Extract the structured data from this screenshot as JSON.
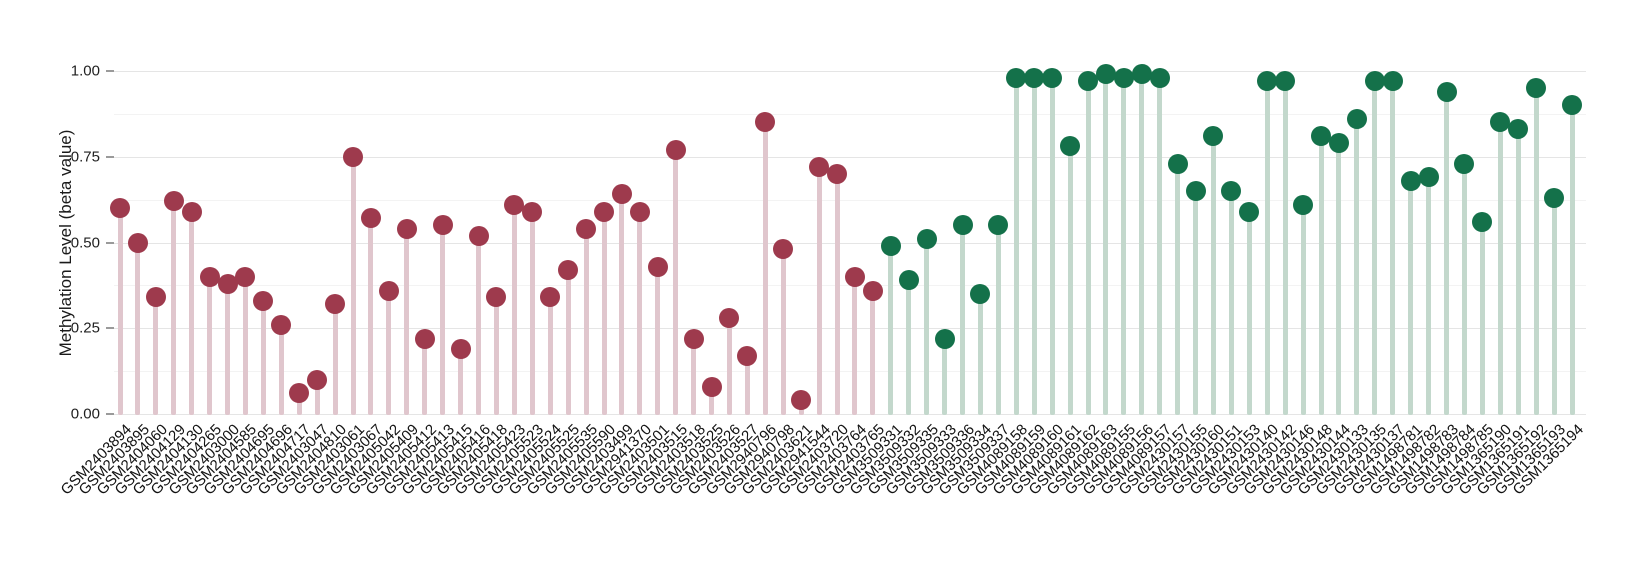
{
  "chart_data": {
    "type": "lollipop",
    "title": "",
    "ylabel": "Methylation Level (beta value)",
    "ylim": [
      0,
      1.0
    ],
    "yticks": [
      0,
      0.25,
      0.5,
      0.75,
      1.0
    ],
    "ytick_labels": [
      "0.00",
      "0.25",
      "0.50",
      "0.75",
      "1.00"
    ],
    "grid": "horizontal-only, major every 0.25, minor every 0.125",
    "legend": "none",
    "groups": [
      {
        "name": "group-1-red",
        "dot_color": "#9e3a4d",
        "stem_color": "#e0c6cd"
      },
      {
        "name": "group-2-green",
        "dot_color": "#14714a",
        "stem_color": "#c3d8cc"
      }
    ],
    "points": [
      {
        "sample": "GSM2403894",
        "value": 0.6,
        "group": 0
      },
      {
        "sample": "GSM2403895",
        "value": 0.5,
        "group": 0
      },
      {
        "sample": "GSM2404060",
        "value": 0.34,
        "group": 0
      },
      {
        "sample": "GSM2404129",
        "value": 0.62,
        "group": 0
      },
      {
        "sample": "GSM2404130",
        "value": 0.59,
        "group": 0
      },
      {
        "sample": "GSM2404265",
        "value": 0.4,
        "group": 0
      },
      {
        "sample": "GSM2403000",
        "value": 0.38,
        "group": 0
      },
      {
        "sample": "GSM2404585",
        "value": 0.4,
        "group": 0
      },
      {
        "sample": "GSM2404695",
        "value": 0.33,
        "group": 0
      },
      {
        "sample": "GSM2404696",
        "value": 0.26,
        "group": 0
      },
      {
        "sample": "GSM2404717",
        "value": 0.06,
        "group": 0
      },
      {
        "sample": "GSM2403047",
        "value": 0.1,
        "group": 0
      },
      {
        "sample": "GSM2404810",
        "value": 0.32,
        "group": 0
      },
      {
        "sample": "GSM2403061",
        "value": 0.75,
        "group": 0
      },
      {
        "sample": "GSM2403067",
        "value": 0.57,
        "group": 0
      },
      {
        "sample": "GSM2405042",
        "value": 0.36,
        "group": 0
      },
      {
        "sample": "GSM2405409",
        "value": 0.54,
        "group": 0
      },
      {
        "sample": "GSM2405412",
        "value": 0.22,
        "group": 0
      },
      {
        "sample": "GSM2405413",
        "value": 0.55,
        "group": 0
      },
      {
        "sample": "GSM2405415",
        "value": 0.19,
        "group": 0
      },
      {
        "sample": "GSM2405416",
        "value": 0.52,
        "group": 0
      },
      {
        "sample": "GSM2405418",
        "value": 0.34,
        "group": 0
      },
      {
        "sample": "GSM2405423",
        "value": 0.61,
        "group": 0
      },
      {
        "sample": "GSM2405523",
        "value": 0.59,
        "group": 0
      },
      {
        "sample": "GSM2405524",
        "value": 0.34,
        "group": 0
      },
      {
        "sample": "GSM2405525",
        "value": 0.42,
        "group": 0
      },
      {
        "sample": "GSM2405535",
        "value": 0.54,
        "group": 0
      },
      {
        "sample": "GSM2405590",
        "value": 0.59,
        "group": 0
      },
      {
        "sample": "GSM2403499",
        "value": 0.64,
        "group": 0
      },
      {
        "sample": "GSM2941370",
        "value": 0.59,
        "group": 0
      },
      {
        "sample": "GSM2403501",
        "value": 0.43,
        "group": 0
      },
      {
        "sample": "GSM2403515",
        "value": 0.77,
        "group": 0
      },
      {
        "sample": "GSM2403518",
        "value": 0.22,
        "group": 0
      },
      {
        "sample": "GSM2403525",
        "value": 0.08,
        "group": 0
      },
      {
        "sample": "GSM2403526",
        "value": 0.28,
        "group": 0
      },
      {
        "sample": "GSM2403527",
        "value": 0.17,
        "group": 0
      },
      {
        "sample": "GSM2940796",
        "value": 0.85,
        "group": 0
      },
      {
        "sample": "GSM2940798",
        "value": 0.48,
        "group": 0
      },
      {
        "sample": "GSM2403621",
        "value": 0.04,
        "group": 0
      },
      {
        "sample": "GSM2941544",
        "value": 0.72,
        "group": 0
      },
      {
        "sample": "GSM2403720",
        "value": 0.7,
        "group": 0
      },
      {
        "sample": "GSM2403764",
        "value": 0.4,
        "group": 0
      },
      {
        "sample": "GSM2403765",
        "value": 0.36,
        "group": 0
      },
      {
        "sample": "GSM3509331",
        "value": 0.49,
        "group": 1
      },
      {
        "sample": "GSM3509332",
        "value": 0.39,
        "group": 1
      },
      {
        "sample": "GSM3509335",
        "value": 0.51,
        "group": 1
      },
      {
        "sample": "GSM3509333",
        "value": 0.22,
        "group": 1
      },
      {
        "sample": "GSM3509336",
        "value": 0.55,
        "group": 1
      },
      {
        "sample": "GSM3509334",
        "value": 0.35,
        "group": 1
      },
      {
        "sample": "GSM3509337",
        "value": 0.55,
        "group": 1
      },
      {
        "sample": "GSM4089158",
        "value": 0.98,
        "group": 1
      },
      {
        "sample": "GSM4089159",
        "value": 0.98,
        "group": 1
      },
      {
        "sample": "GSM4089160",
        "value": 0.98,
        "group": 1
      },
      {
        "sample": "GSM4089161",
        "value": 0.78,
        "group": 1
      },
      {
        "sample": "GSM4089162",
        "value": 0.97,
        "group": 1
      },
      {
        "sample": "GSM4089163",
        "value": 0.99,
        "group": 1
      },
      {
        "sample": "GSM4089155",
        "value": 0.98,
        "group": 1
      },
      {
        "sample": "GSM4089156",
        "value": 0.99,
        "group": 1
      },
      {
        "sample": "GSM4089157",
        "value": 0.98,
        "group": 1
      },
      {
        "sample": "GSM2430157",
        "value": 0.73,
        "group": 1
      },
      {
        "sample": "GSM2430155",
        "value": 0.65,
        "group": 1
      },
      {
        "sample": "GSM2430160",
        "value": 0.81,
        "group": 1
      },
      {
        "sample": "GSM2430151",
        "value": 0.65,
        "group": 1
      },
      {
        "sample": "GSM2430153",
        "value": 0.59,
        "group": 1
      },
      {
        "sample": "GSM2430140",
        "value": 0.97,
        "group": 1
      },
      {
        "sample": "GSM2430142",
        "value": 0.97,
        "group": 1
      },
      {
        "sample": "GSM2430146",
        "value": 0.61,
        "group": 1
      },
      {
        "sample": "GSM2430148",
        "value": 0.81,
        "group": 1
      },
      {
        "sample": "GSM2430144",
        "value": 0.79,
        "group": 1
      },
      {
        "sample": "GSM2430133",
        "value": 0.86,
        "group": 1
      },
      {
        "sample": "GSM2430135",
        "value": 0.97,
        "group": 1
      },
      {
        "sample": "GSM2430137",
        "value": 0.97,
        "group": 1
      },
      {
        "sample": "GSM1498781",
        "value": 0.68,
        "group": 1
      },
      {
        "sample": "GSM1498782",
        "value": 0.69,
        "group": 1
      },
      {
        "sample": "GSM1498783",
        "value": 0.94,
        "group": 1
      },
      {
        "sample": "GSM1498784",
        "value": 0.73,
        "group": 1
      },
      {
        "sample": "GSM1498785",
        "value": 0.56,
        "group": 1
      },
      {
        "sample": "GSM1365190",
        "value": 0.85,
        "group": 1
      },
      {
        "sample": "GSM1365191",
        "value": 0.83,
        "group": 1
      },
      {
        "sample": "GSM1365192",
        "value": 0.95,
        "group": 1
      },
      {
        "sample": "GSM1365193",
        "value": 0.63,
        "group": 1
      },
      {
        "sample": "GSM1365194",
        "value": 0.9,
        "group": 1
      }
    ]
  }
}
